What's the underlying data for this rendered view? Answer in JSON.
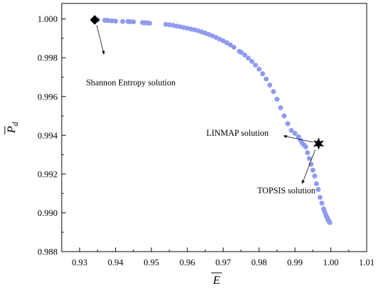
{
  "chart_data": {
    "type": "scatter",
    "xlabel": "E",
    "ylabel": "P",
    "ylabel_sub": "d",
    "xlim": [
      0.925,
      1.01
    ],
    "ylim": [
      0.988,
      1.0008
    ],
    "x_ticks": [
      0.93,
      0.94,
      0.95,
      0.96,
      0.97,
      0.98,
      0.99,
      1.0,
      1.01
    ],
    "x_tick_labels": [
      "0.93",
      "0.94",
      "0.95",
      "0.96",
      "0.97",
      "0.98",
      "0.99",
      "1.00",
      "1.01"
    ],
    "y_ticks": [
      0.988,
      0.99,
      0.992,
      0.994,
      0.996,
      0.998,
      1.0
    ],
    "y_tick_labels": [
      "0.988",
      "0.990",
      "0.992",
      "0.994",
      "0.996",
      "0.998",
      "1.000"
    ],
    "grid": false,
    "point_color": "#8f9bef",
    "series": [
      {
        "x": [
          0.935,
          0.937,
          0.9375,
          0.938,
          0.939,
          0.94,
          0.942,
          0.9435,
          0.944,
          0.945,
          0.9475,
          0.948,
          0.9485,
          0.949,
          0.9495,
          0.954,
          0.955,
          0.956,
          0.957,
          0.958,
          0.959,
          0.96,
          0.961,
          0.962,
          0.963,
          0.964,
          0.965,
          0.966,
          0.967,
          0.968,
          0.969,
          0.97,
          0.971,
          0.972,
          0.973,
          0.9745,
          0.975,
          0.976,
          0.977,
          0.978,
          0.979,
          0.98,
          0.981,
          0.982,
          0.983,
          0.984,
          0.985,
          0.986,
          0.987,
          0.988,
          0.989,
          0.99,
          0.991,
          0.9915,
          0.992,
          0.9925,
          0.993,
          0.9935,
          0.994,
          0.9945,
          0.995,
          0.9955,
          0.996,
          0.9965,
          0.997,
          0.9975,
          0.998,
          0.9983,
          0.9986,
          0.9988,
          0.999,
          0.9992,
          0.9993,
          0.9994,
          0.9995,
          0.9996,
          0.9997
        ],
        "y": [
          0.99995,
          0.99993,
          0.99993,
          0.99992,
          0.9999,
          0.99989,
          0.99987,
          0.99987,
          0.99986,
          0.99985,
          0.99981,
          0.9998,
          0.9998,
          0.99979,
          0.99978,
          0.99972,
          0.9997,
          0.99967,
          0.99963,
          0.9996,
          0.99956,
          0.99952,
          0.99948,
          0.99944,
          0.99939,
          0.99933,
          0.99927,
          0.9992,
          0.99913,
          0.99905,
          0.99896,
          0.99887,
          0.99877,
          0.99866,
          0.99854,
          0.99833,
          0.99828,
          0.99814,
          0.99798,
          0.99781,
          0.99762,
          0.99741,
          0.99717,
          0.9969,
          0.99659,
          0.99625,
          0.99586,
          0.99542,
          0.995,
          0.9946,
          0.99425,
          0.9941,
          0.99392,
          0.99375,
          0.9936,
          0.9935,
          0.9934,
          0.9931,
          0.9928,
          0.9925,
          0.9922,
          0.9919,
          0.9915,
          0.9912,
          0.9908,
          0.9905,
          0.9902,
          0.99005,
          0.9899,
          0.9898,
          0.98975,
          0.98968,
          0.98962,
          0.98958,
          0.98955,
          0.98953,
          0.9895
        ]
      }
    ],
    "annotations": [
      {
        "label": "Shannon Entropy solution",
        "point": [
          0.9342,
          0.99995
        ],
        "marker": "diamond",
        "text_at": [
          0.9318,
          0.99657
        ],
        "arrow_to": [
          0.9368,
          0.99817
        ]
      },
      {
        "label": "LINMAP  solution",
        "point": [
          0.9966,
          0.99357
        ],
        "marker": "star",
        "text_at": [
          0.9653,
          0.99397
        ],
        "arrow_from": [
          0.9868,
          0.99397
        ]
      },
      {
        "label": "TOPSIS solution",
        "point": [
          0.9966,
          0.99357
        ],
        "marker": "star",
        "text_at": [
          0.9795,
          0.991
        ],
        "arrow_to": [
          0.992,
          0.9915
        ]
      }
    ]
  }
}
